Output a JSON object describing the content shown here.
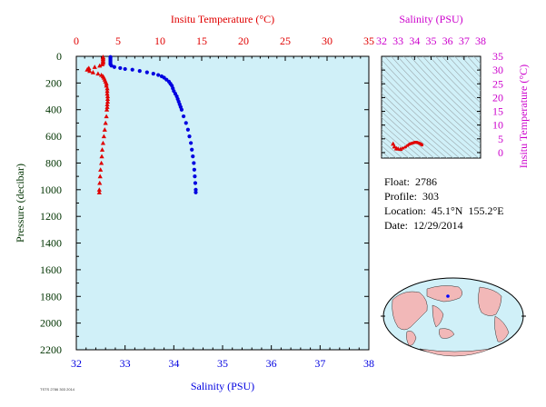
{
  "footer_id": "TSTS 2786 303 2014",
  "float_info": {
    "float": "Float:  2786",
    "profile": "Profile:  303",
    "location": "Location:  45.1°N  155.2°E",
    "date": "Date:  12/29/2014"
  },
  "colors": {
    "temperature": "#e00000",
    "salinity": "#0000e0",
    "ts_axis": "#cc00cc",
    "plot_bg": "#d0f0f8",
    "axis_green": "#003300",
    "land": "#f2b8b8"
  },
  "chart_data": [
    {
      "type": "scatter",
      "xlabel_top": "Insitu Temperature (°C)",
      "xlabel_bottom": "Salinity (PSU)",
      "ylabel": "Pressure (decibar)",
      "xlim_temperature": [
        0,
        35
      ],
      "xlim_salinity": [
        32,
        38
      ],
      "ylim": [
        0,
        2200
      ],
      "y_inverted": true,
      "temperature_ticks": [
        "0",
        "5",
        "10",
        "15",
        "20",
        "25",
        "30",
        "35"
      ],
      "salinity_ticks": [
        "32",
        "33",
        "34",
        "35",
        "36",
        "37",
        "38"
      ],
      "pressure_ticks": [
        "0",
        "200",
        "400",
        "600",
        "800",
        "1000",
        "1200",
        "1400",
        "1600",
        "1800",
        "2000",
        "2200"
      ],
      "series": [
        {
          "name": "",
          "variable": "temperature",
          "marker": "triangle",
          "points": [
            [
              3.2,
              5
            ],
            [
              3.2,
              10
            ],
            [
              3.2,
              20
            ],
            [
              3.2,
              30
            ],
            [
              3.2,
              40
            ],
            [
              3.2,
              50
            ],
            [
              3.1,
              60
            ],
            [
              2.8,
              70
            ],
            [
              2.2,
              80
            ],
            [
              1.5,
              88
            ],
            [
              1.4,
              95
            ],
            [
              1.3,
              100
            ],
            [
              1.6,
              110
            ],
            [
              2.0,
              120
            ],
            [
              2.6,
              130
            ],
            [
              3.0,
              140
            ],
            [
              3.2,
              150
            ],
            [
              3.3,
              160
            ],
            [
              3.4,
              175
            ],
            [
              3.5,
              190
            ],
            [
              3.6,
              205
            ],
            [
              3.6,
              220
            ],
            [
              3.7,
              240
            ],
            [
              3.7,
              260
            ],
            [
              3.7,
              280
            ],
            [
              3.75,
              300
            ],
            [
              3.75,
              320
            ],
            [
              3.75,
              340
            ],
            [
              3.7,
              360
            ],
            [
              3.7,
              380
            ],
            [
              3.65,
              400
            ],
            [
              3.6,
              450
            ],
            [
              3.5,
              500
            ],
            [
              3.4,
              550
            ],
            [
              3.3,
              600
            ],
            [
              3.2,
              650
            ],
            [
              3.1,
              700
            ],
            [
              3.05,
              750
            ],
            [
              3.0,
              800
            ],
            [
              2.9,
              850
            ],
            [
              2.85,
              900
            ],
            [
              2.8,
              950
            ],
            [
              2.75,
              1000
            ],
            [
              2.75,
              1020
            ]
          ]
        },
        {
          "name": "",
          "variable": "salinity",
          "marker": "circle",
          "points": [
            [
              32.7,
              5
            ],
            [
              32.7,
              10
            ],
            [
              32.7,
              20
            ],
            [
              32.7,
              30
            ],
            [
              32.7,
              40
            ],
            [
              32.7,
              50
            ],
            [
              32.7,
              60
            ],
            [
              32.72,
              70
            ],
            [
              32.78,
              80
            ],
            [
              32.9,
              88
            ],
            [
              33.0,
              95
            ],
            [
              33.15,
              100
            ],
            [
              33.3,
              110
            ],
            [
              33.45,
              120
            ],
            [
              33.58,
              130
            ],
            [
              33.68,
              140
            ],
            [
              33.75,
              150
            ],
            [
              33.8,
              160
            ],
            [
              33.85,
              175
            ],
            [
              33.9,
              190
            ],
            [
              33.93,
              205
            ],
            [
              33.96,
              220
            ],
            [
              33.98,
              240
            ],
            [
              34.0,
              260
            ],
            [
              34.03,
              280
            ],
            [
              34.06,
              300
            ],
            [
              34.08,
              320
            ],
            [
              34.1,
              340
            ],
            [
              34.12,
              360
            ],
            [
              34.14,
              380
            ],
            [
              34.16,
              400
            ],
            [
              34.2,
              450
            ],
            [
              34.25,
              500
            ],
            [
              34.29,
              550
            ],
            [
              34.32,
              600
            ],
            [
              34.35,
              650
            ],
            [
              34.37,
              700
            ],
            [
              34.39,
              750
            ],
            [
              34.41,
              800
            ],
            [
              34.42,
              850
            ],
            [
              34.43,
              900
            ],
            [
              34.44,
              950
            ],
            [
              34.45,
              1000
            ],
            [
              34.45,
              1020
            ]
          ]
        }
      ]
    },
    {
      "type": "scatter",
      "xlabel_top": "Salinity (PSU)",
      "ylabel": "Insitu Temperature (°C)",
      "xlim": [
        32,
        38
      ],
      "ylim": [
        -2,
        35
      ],
      "x_ticks": [
        "32",
        "33",
        "34",
        "35",
        "36",
        "37",
        "38"
      ],
      "y_ticks": [
        "0",
        "5",
        "10",
        "15",
        "20",
        "25",
        "30",
        "35"
      ],
      "series": [
        {
          "name": "",
          "marker": "triangle",
          "points": [
            [
              32.7,
              3.2
            ],
            [
              32.78,
              2.2
            ],
            [
              32.9,
              1.5
            ],
            [
              33.0,
              1.4
            ],
            [
              33.15,
              1.3
            ]
          ]
        },
        {
          "name": "",
          "marker": "circle",
          "points": [
            [
              33.3,
              1.6
            ],
            [
              33.45,
              2.0
            ],
            [
              33.58,
              2.6
            ],
            [
              33.68,
              3.0
            ],
            [
              33.75,
              3.2
            ],
            [
              33.8,
              3.3
            ],
            [
              33.85,
              3.4
            ],
            [
              33.9,
              3.5
            ],
            [
              33.96,
              3.6
            ],
            [
              34.0,
              3.7
            ],
            [
              34.06,
              3.75
            ],
            [
              34.1,
              3.75
            ],
            [
              34.14,
              3.7
            ],
            [
              34.16,
              3.65
            ],
            [
              34.2,
              3.6
            ],
            [
              34.25,
              3.5
            ],
            [
              34.29,
              3.4
            ],
            [
              34.32,
              3.3
            ],
            [
              34.35,
              3.2
            ],
            [
              34.37,
              3.1
            ],
            [
              34.39,
              3.05
            ],
            [
              34.41,
              3.0
            ],
            [
              34.43,
              2.85
            ],
            [
              34.45,
              2.75
            ]
          ]
        }
      ]
    }
  ]
}
